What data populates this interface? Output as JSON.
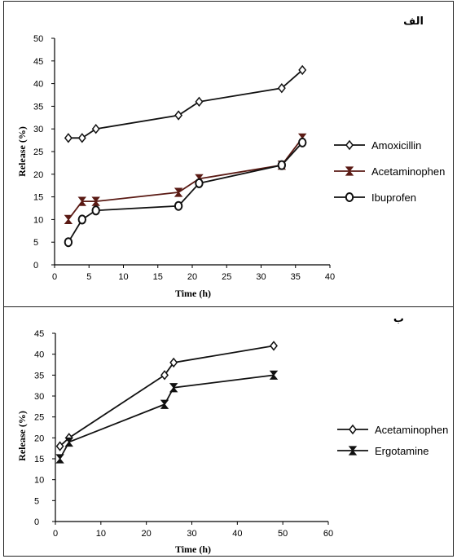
{
  "chart_data": [
    {
      "type": "line",
      "panel_label": "الف",
      "xlabel": "Time (h)",
      "ylabel": "Release (%)",
      "xlim": [
        0,
        40
      ],
      "ylim": [
        0,
        50
      ],
      "xticks": [
        "0",
        "5",
        "10",
        "15",
        "20",
        "25",
        "30",
        "35",
        "40"
      ],
      "yticks": [
        "0",
        "5",
        "10",
        "15",
        "20",
        "25",
        "30",
        "35",
        "40",
        "45",
        "50"
      ],
      "grid": false,
      "legend_position": "right",
      "series": [
        {
          "name": "Amoxicillin",
          "marker": "diamond",
          "color": "#111111",
          "x": [
            2,
            4,
            6,
            18,
            21,
            33,
            36
          ],
          "y": [
            28,
            28,
            30,
            33,
            36,
            39,
            43
          ]
        },
        {
          "name": "Acetaminophen",
          "marker": "hourglass",
          "color": "#5a1a14",
          "x": [
            2,
            4,
            6,
            18,
            21,
            33,
            36
          ],
          "y": [
            10,
            14,
            14,
            16,
            19,
            22,
            28
          ]
        },
        {
          "name": "Ibuprofen",
          "marker": "circle",
          "color": "#111111",
          "x": [
            2,
            4,
            6,
            18,
            21,
            33,
            36
          ],
          "y": [
            5,
            10,
            12,
            13,
            18,
            22,
            27
          ]
        }
      ]
    },
    {
      "type": "line",
      "panel_label": "ب",
      "xlabel": "Time (h)",
      "ylabel": "Release (%)",
      "xlim": [
        0,
        60
      ],
      "ylim": [
        0,
        45
      ],
      "xticks": [
        "0",
        "10",
        "20",
        "30",
        "40",
        "50",
        "60"
      ],
      "yticks": [
        "0",
        "5",
        "10",
        "15",
        "20",
        "25",
        "30",
        "35",
        "40",
        "45"
      ],
      "grid": false,
      "legend_position": "right",
      "series": [
        {
          "name": "Acetaminophen",
          "marker": "diamond",
          "color": "#111111",
          "x": [
            1,
            3,
            24,
            26,
            48
          ],
          "y": [
            18,
            20,
            35,
            38,
            42
          ]
        },
        {
          "name": "Ergotamine",
          "marker": "hourglass",
          "color": "#111111",
          "x": [
            1,
            3,
            24,
            26,
            48
          ],
          "y": [
            15,
            19,
            28,
            32,
            35
          ]
        }
      ]
    }
  ]
}
